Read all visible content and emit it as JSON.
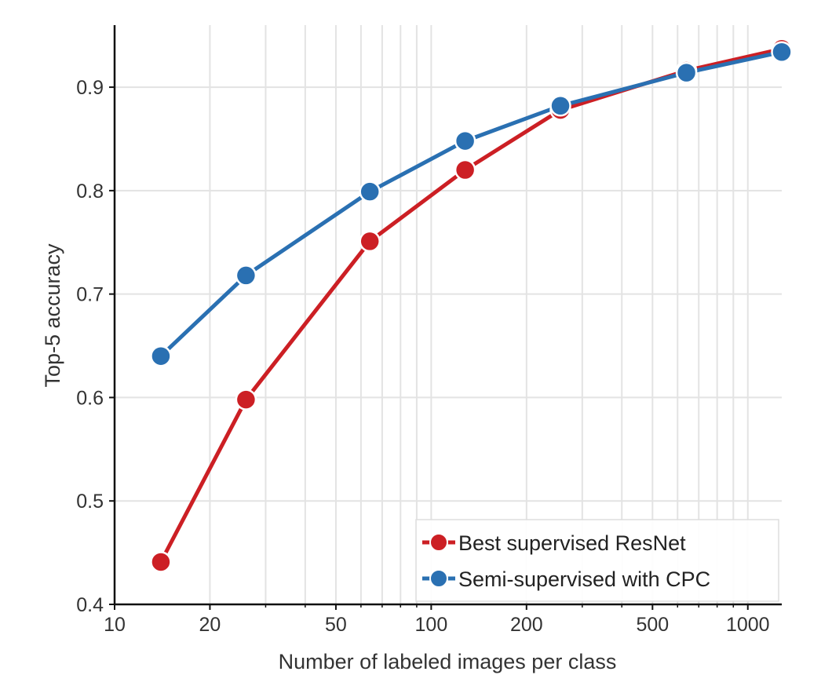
{
  "chart_data": {
    "type": "line",
    "xscale": "log",
    "xlim": [
      10,
      1280
    ],
    "ylim": [
      0.4,
      0.96
    ],
    "xlabel": "Number of labeled images per class",
    "ylabel": "Top-5 accuracy",
    "grid": true,
    "legend_position": "bottom-right",
    "x_major_ticks": [
      10,
      20,
      50,
      100,
      200,
      500,
      1000
    ],
    "x_minor_ticks": [
      30,
      40,
      60,
      70,
      80,
      90,
      300,
      400,
      600,
      700,
      800,
      900
    ],
    "x_tick_labels": [
      "10",
      "20",
      "50",
      "100",
      "200",
      "500",
      "1000"
    ],
    "y_ticks": [
      0.4,
      0.5,
      0.6,
      0.7,
      0.8,
      0.9
    ],
    "y_tick_labels": [
      "0.4",
      "0.5",
      "0.6",
      "0.7",
      "0.8",
      "0.9"
    ],
    "series": [
      {
        "name": "Best supervised ResNet",
        "color": "#cc1f24",
        "x": [
          14,
          26,
          64,
          128,
          256,
          640,
          1280
        ],
        "y": [
          0.441,
          0.598,
          0.751,
          0.82,
          0.878,
          0.916,
          0.937
        ]
      },
      {
        "name": "Semi-supervised with CPC",
        "color": "#2a70b2",
        "x": [
          14,
          26,
          64,
          128,
          256,
          640,
          1280
        ],
        "y": [
          0.64,
          0.718,
          0.799,
          0.848,
          0.882,
          0.914,
          0.934
        ]
      }
    ]
  }
}
